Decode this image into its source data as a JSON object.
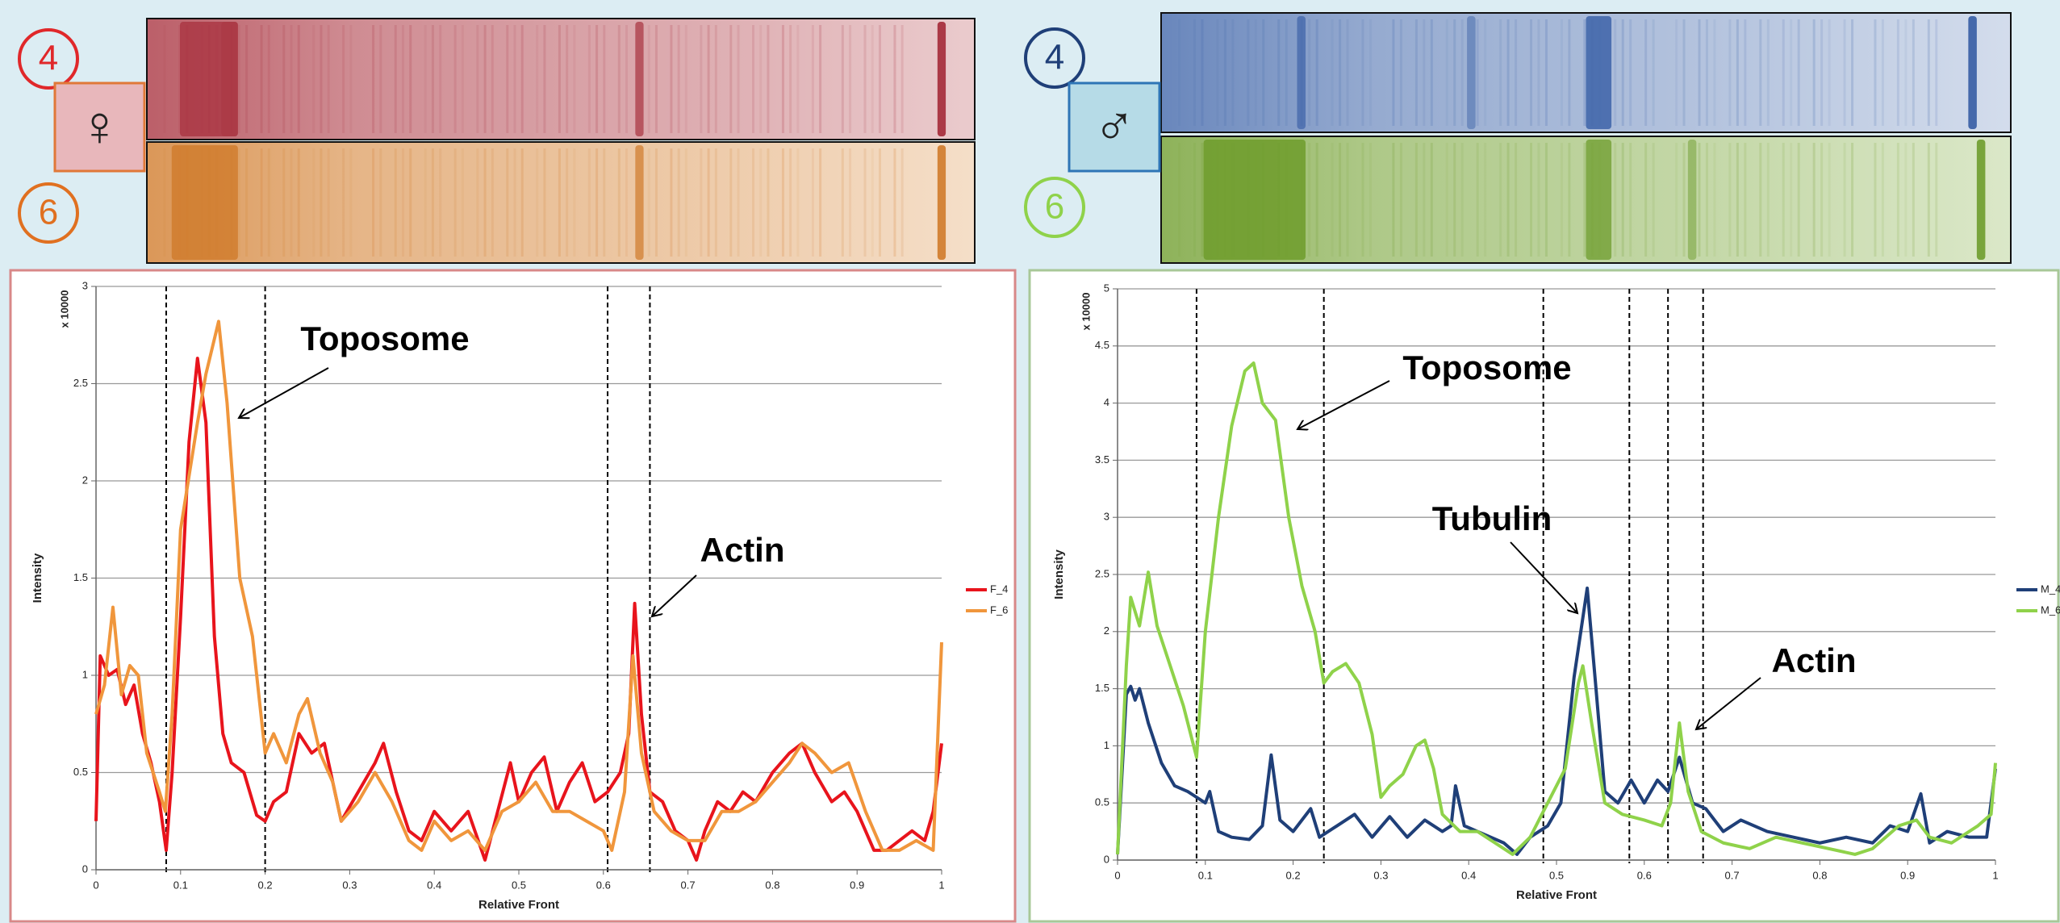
{
  "gels": [
    {
      "symbol": "♀",
      "lanes": [
        "4",
        "6"
      ]
    },
    {
      "symbol": "♂",
      "lanes": [
        "4",
        "6"
      ]
    }
  ],
  "chart_data": [
    {
      "type": "line",
      "y_axis_unit": "x 10000",
      "y_axis_label": "Intensity",
      "x_axis_label": "Relative Front",
      "xlim": [
        0,
        1
      ],
      "xticks": [
        0,
        0.1,
        0.2,
        0.3,
        0.4,
        0.5,
        0.6,
        0.7,
        0.8,
        0.9,
        1
      ],
      "ylim": [
        0,
        3
      ],
      "yticks": [
        0,
        0.5,
        1,
        1.5,
        2,
        2.5,
        3
      ],
      "grid": true,
      "legend": "right",
      "vlines": [
        0.083,
        0.2,
        0.605,
        0.655
      ],
      "annotations": [
        "Toposome",
        "Actin"
      ],
      "series": [
        {
          "name": "F_4",
          "color": "#e8141c",
          "x": [
            0,
            0.005,
            0.015,
            0.025,
            0.035,
            0.045,
            0.055,
            0.065,
            0.075,
            0.083,
            0.09,
            0.1,
            0.11,
            0.12,
            0.13,
            0.14,
            0.15,
            0.16,
            0.175,
            0.19,
            0.2,
            0.21,
            0.225,
            0.24,
            0.255,
            0.27,
            0.28,
            0.29,
            0.31,
            0.33,
            0.34,
            0.355,
            0.37,
            0.385,
            0.4,
            0.42,
            0.44,
            0.46,
            0.475,
            0.49,
            0.5,
            0.515,
            0.53,
            0.545,
            0.56,
            0.575,
            0.59,
            0.605,
            0.62,
            0.63,
            0.637,
            0.645,
            0.655,
            0.67,
            0.685,
            0.7,
            0.71,
            0.72,
            0.735,
            0.75,
            0.765,
            0.78,
            0.8,
            0.82,
            0.835,
            0.85,
            0.87,
            0.885,
            0.9,
            0.92,
            0.935,
            0.95,
            0.965,
            0.98,
            0.99,
            1
          ],
          "values": [
            0.25,
            1.1,
            1.0,
            1.03,
            0.85,
            0.95,
            0.7,
            0.55,
            0.35,
            0.1,
            0.5,
            1.3,
            2.2,
            2.63,
            2.3,
            1.2,
            0.7,
            0.55,
            0.5,
            0.28,
            0.25,
            0.35,
            0.4,
            0.7,
            0.6,
            0.65,
            0.45,
            0.25,
            0.4,
            0.55,
            0.65,
            0.4,
            0.2,
            0.15,
            0.3,
            0.2,
            0.3,
            0.05,
            0.3,
            0.55,
            0.35,
            0.5,
            0.58,
            0.3,
            0.45,
            0.55,
            0.35,
            0.4,
            0.5,
            0.7,
            1.37,
            0.8,
            0.4,
            0.35,
            0.2,
            0.15,
            0.05,
            0.2,
            0.35,
            0.3,
            0.4,
            0.35,
            0.5,
            0.6,
            0.65,
            0.5,
            0.35,
            0.4,
            0.3,
            0.1,
            0.1,
            0.15,
            0.2,
            0.15,
            0.3,
            0.65
          ]
        },
        {
          "name": "F_6",
          "color": "#f0963c",
          "x": [
            0,
            0.01,
            0.02,
            0.03,
            0.04,
            0.05,
            0.06,
            0.075,
            0.082,
            0.09,
            0.1,
            0.12,
            0.13,
            0.145,
            0.155,
            0.17,
            0.185,
            0.195,
            0.2,
            0.21,
            0.225,
            0.24,
            0.25,
            0.265,
            0.28,
            0.29,
            0.31,
            0.33,
            0.35,
            0.37,
            0.385,
            0.4,
            0.42,
            0.44,
            0.46,
            0.48,
            0.5,
            0.52,
            0.54,
            0.56,
            0.58,
            0.6,
            0.61,
            0.625,
            0.635,
            0.645,
            0.66,
            0.68,
            0.7,
            0.72,
            0.74,
            0.76,
            0.78,
            0.8,
            0.82,
            0.835,
            0.85,
            0.87,
            0.89,
            0.91,
            0.93,
            0.95,
            0.97,
            0.99,
            1
          ],
          "values": [
            0.8,
            0.95,
            1.35,
            0.9,
            1.05,
            1.0,
            0.6,
            0.4,
            0.3,
            0.8,
            1.75,
            2.3,
            2.55,
            2.82,
            2.4,
            1.5,
            1.2,
            0.8,
            0.6,
            0.7,
            0.55,
            0.8,
            0.88,
            0.6,
            0.45,
            0.25,
            0.35,
            0.5,
            0.35,
            0.15,
            0.1,
            0.25,
            0.15,
            0.2,
            0.1,
            0.3,
            0.35,
            0.45,
            0.3,
            0.3,
            0.25,
            0.2,
            0.1,
            0.4,
            1.1,
            0.6,
            0.3,
            0.2,
            0.15,
            0.15,
            0.3,
            0.3,
            0.35,
            0.45,
            0.55,
            0.65,
            0.6,
            0.5,
            0.55,
            0.3,
            0.1,
            0.1,
            0.15,
            0.1,
            1.17
          ]
        }
      ]
    },
    {
      "type": "line",
      "y_axis_unit": "x 10000",
      "y_axis_label": "Intensity",
      "x_axis_label": "Relative Front",
      "xlim": [
        0,
        1
      ],
      "xticks": [
        0,
        0.1,
        0.2,
        0.3,
        0.4,
        0.5,
        0.6,
        0.7,
        0.8,
        0.9,
        1
      ],
      "ylim": [
        0,
        5
      ],
      "yticks": [
        0,
        0.5,
        1,
        1.5,
        2,
        2.5,
        3,
        3.5,
        4,
        4.5,
        5
      ],
      "grid": true,
      "legend": "right",
      "vlines": [
        0.09,
        0.235,
        0.485,
        0.583,
        0.627,
        0.667
      ],
      "annotations": [
        "Toposome",
        "Tubulin",
        "Actin"
      ],
      "series": [
        {
          "name": "M_4",
          "color": "#1f3f78",
          "x": [
            0,
            0.01,
            0.015,
            0.02,
            0.025,
            0.035,
            0.05,
            0.065,
            0.08,
            0.09,
            0.1,
            0.105,
            0.115,
            0.13,
            0.15,
            0.165,
            0.175,
            0.185,
            0.2,
            0.22,
            0.23,
            0.25,
            0.27,
            0.29,
            0.31,
            0.33,
            0.35,
            0.37,
            0.38,
            0.385,
            0.395,
            0.41,
            0.44,
            0.455,
            0.47,
            0.49,
            0.505,
            0.52,
            0.535,
            0.545,
            0.555,
            0.57,
            0.585,
            0.6,
            0.615,
            0.627,
            0.64,
            0.655,
            0.67,
            0.69,
            0.71,
            0.74,
            0.77,
            0.8,
            0.83,
            0.86,
            0.88,
            0.9,
            0.915,
            0.925,
            0.945,
            0.97,
            0.99,
            1
          ],
          "values": [
            0.05,
            1.45,
            1.52,
            1.4,
            1.5,
            1.2,
            0.85,
            0.65,
            0.6,
            0.55,
            0.5,
            0.6,
            0.25,
            0.2,
            0.18,
            0.3,
            0.92,
            0.35,
            0.25,
            0.45,
            0.2,
            0.3,
            0.4,
            0.2,
            0.38,
            0.2,
            0.35,
            0.25,
            0.3,
            0.65,
            0.3,
            0.25,
            0.15,
            0.05,
            0.2,
            0.3,
            0.5,
            1.6,
            2.38,
            1.5,
            0.6,
            0.5,
            0.7,
            0.5,
            0.7,
            0.6,
            0.9,
            0.5,
            0.45,
            0.25,
            0.35,
            0.25,
            0.2,
            0.15,
            0.2,
            0.15,
            0.3,
            0.25,
            0.58,
            0.15,
            0.25,
            0.2,
            0.2,
            0.8
          ]
        },
        {
          "name": "M_6",
          "color": "#8fd24a",
          "x": [
            0,
            0.01,
            0.015,
            0.025,
            0.035,
            0.045,
            0.06,
            0.075,
            0.09,
            0.1,
            0.115,
            0.13,
            0.145,
            0.155,
            0.165,
            0.18,
            0.195,
            0.21,
            0.225,
            0.235,
            0.245,
            0.26,
            0.275,
            0.29,
            0.3,
            0.31,
            0.325,
            0.34,
            0.35,
            0.36,
            0.37,
            0.39,
            0.41,
            0.43,
            0.45,
            0.47,
            0.49,
            0.51,
            0.525,
            0.53,
            0.54,
            0.555,
            0.575,
            0.6,
            0.62,
            0.63,
            0.64,
            0.65,
            0.665,
            0.69,
            0.72,
            0.75,
            0.78,
            0.81,
            0.84,
            0.86,
            0.89,
            0.91,
            0.925,
            0.95,
            0.98,
            0.995,
            1
          ],
          "values": [
            0.05,
            1.7,
            2.3,
            2.05,
            2.52,
            2.05,
            1.7,
            1.35,
            0.9,
            2.0,
            3.0,
            3.8,
            4.28,
            4.35,
            4.0,
            3.85,
            3.0,
            2.4,
            2.0,
            1.55,
            1.65,
            1.72,
            1.55,
            1.1,
            0.55,
            0.65,
            0.75,
            1.0,
            1.05,
            0.8,
            0.4,
            0.25,
            0.25,
            0.15,
            0.05,
            0.2,
            0.5,
            0.8,
            1.55,
            1.7,
            1.2,
            0.5,
            0.4,
            0.35,
            0.3,
            0.5,
            1.2,
            0.6,
            0.25,
            0.15,
            0.1,
            0.2,
            0.15,
            0.1,
            0.05,
            0.1,
            0.3,
            0.35,
            0.2,
            0.15,
            0.3,
            0.4,
            0.85
          ]
        }
      ]
    }
  ]
}
